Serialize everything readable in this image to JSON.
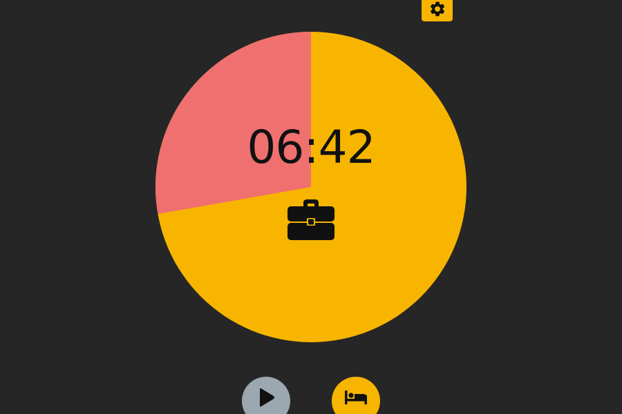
{
  "timer": {
    "display": "06:42",
    "remaining_fraction": 0.7222,
    "elapsed_fraction": 0.2778,
    "mode_icon": "briefcase-icon"
  },
  "colors": {
    "background": "#262626",
    "remaining": "#F7B500",
    "elapsed": "#F07070",
    "accent": "#F7B500",
    "play_button": "#9BA8AF",
    "icon": "#111111"
  },
  "controls": {
    "settings_icon": "gear-icon",
    "play_icon": "play-icon",
    "break_icon": "bed-icon"
  }
}
